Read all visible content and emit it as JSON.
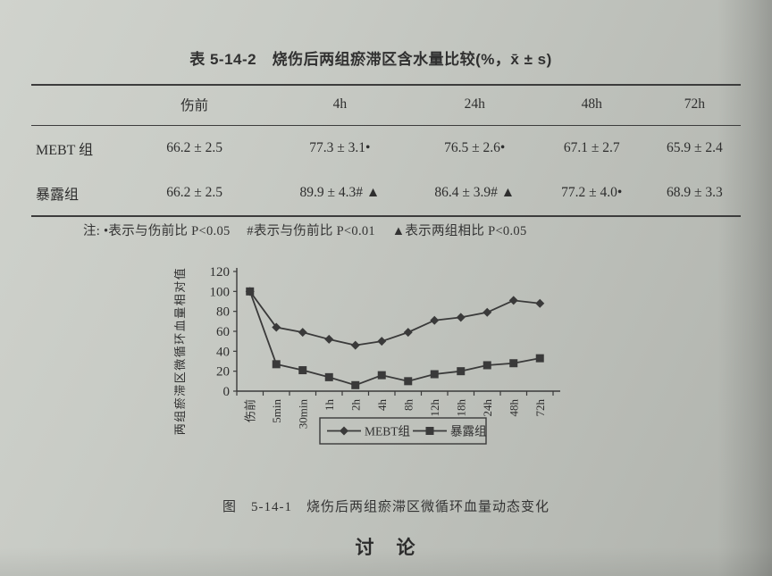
{
  "page": {
    "paper_color": "#c6c9c3",
    "text_color": "#2e2e2e"
  },
  "table": {
    "title": "表 5-14-2　烧伤后两组瘀滞区含水量比较(%，x̄ ± s)",
    "columns": [
      "",
      "伤前",
      "4h",
      "24h",
      "48h",
      "72h"
    ],
    "rows": [
      {
        "label": "MEBT 组",
        "values": [
          "66.2 ± 2.5",
          "77.3 ± 3.1•",
          "76.5 ± 2.6•",
          "67.1 ± 2.7",
          "65.9 ± 2.4"
        ]
      },
      {
        "label": "暴露组",
        "values": [
          "66.2 ± 2.5",
          "89.9 ± 4.3# ▲",
          "86.4 ± 3.9# ▲",
          "77.2 ± 4.0•",
          "68.9 ± 3.3"
        ]
      }
    ],
    "note": "注: •表示与伤前比 P<0.05　 #表示与伤前比 P<0.01　 ▲表示两组相比 P<0.05"
  },
  "chart_data": {
    "type": "line",
    "categories": [
      "伤前",
      "5min",
      "30min",
      "1h",
      "2h",
      "4h",
      "8h",
      "12h",
      "18h",
      "24h",
      "48h",
      "72h"
    ],
    "series": [
      {
        "name": "MEBT组",
        "marker": "diamond",
        "values": [
          100,
          64,
          59,
          52,
          46,
          50,
          59,
          71,
          74,
          79,
          91,
          88
        ]
      },
      {
        "name": "暴露组",
        "marker": "square",
        "values": [
          100,
          27,
          21,
          14,
          6,
          16,
          10,
          17,
          20,
          26,
          28,
          33
        ]
      }
    ],
    "xlabel": "",
    "ylabel": "两组瘀滞区微循环血量相对值",
    "ylim": [
      0,
      120
    ],
    "ytick_step": 20,
    "grid": false,
    "legend_position": "bottom",
    "line_color": "#3a3a3a"
  },
  "figure_caption": "图　5-14-1　烧伤后两组瘀滞区微循环血量动态变化",
  "section_heading": "讨　论"
}
